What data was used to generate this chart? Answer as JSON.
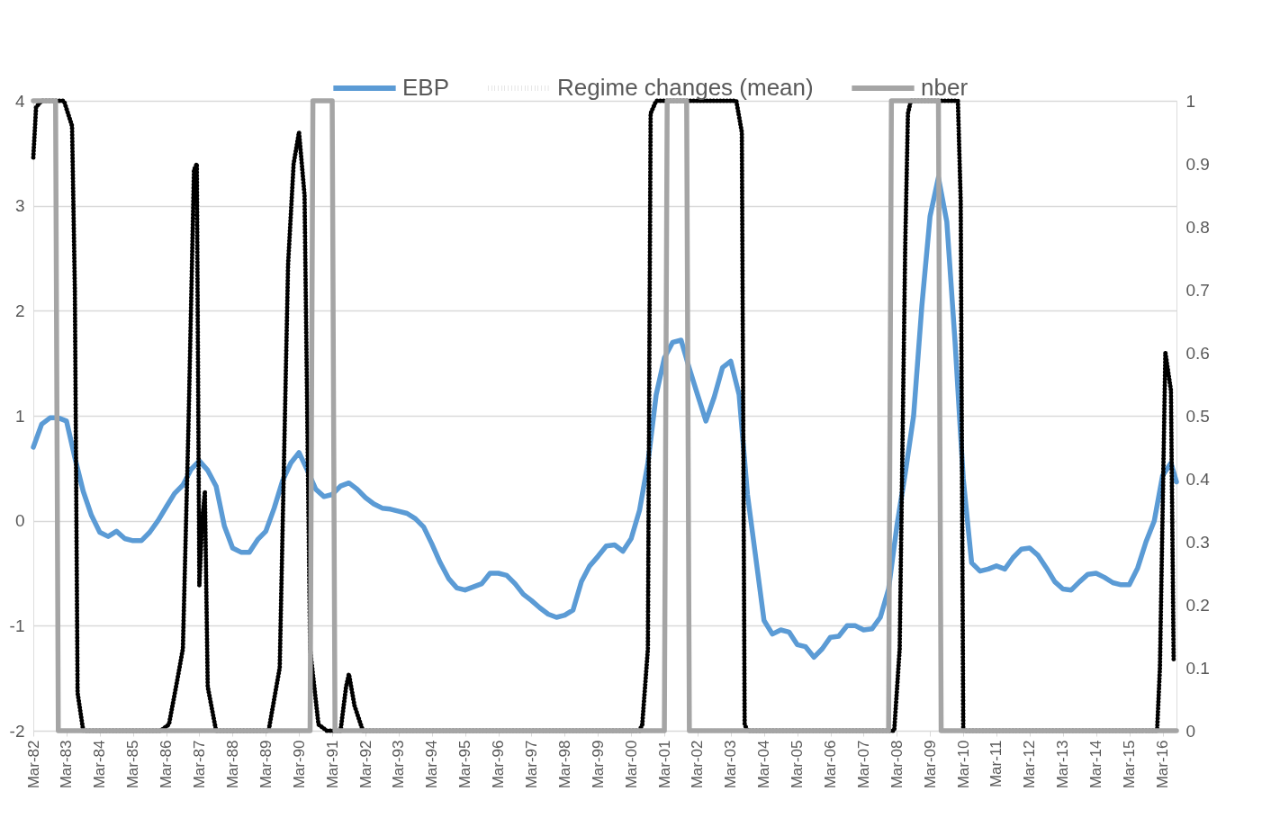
{
  "chart_data": {
    "type": "line",
    "legend": "top",
    "grid": "y",
    "marker": "none",
    "xlim": [
      "1982-03",
      "2016-08"
    ],
    "xticks": [
      {
        "value": "1982-03",
        "label": "Mar-82"
      },
      {
        "value": "1983-03",
        "label": "Mar-83"
      },
      {
        "value": "1984-03",
        "label": "Mar-84"
      },
      {
        "value": "1985-03",
        "label": "Mar-85"
      },
      {
        "value": "1986-03",
        "label": "Mar-86"
      },
      {
        "value": "1987-03",
        "label": "Mar-87"
      },
      {
        "value": "1988-03",
        "label": "Mar-88"
      },
      {
        "value": "1989-03",
        "label": "Mar-89"
      },
      {
        "value": "1990-03",
        "label": "Mar-90"
      },
      {
        "value": "1991-03",
        "label": "Mar-91"
      },
      {
        "value": "1992-03",
        "label": "Mar-92"
      },
      {
        "value": "1993-03",
        "label": "Mar-93"
      },
      {
        "value": "1994-03",
        "label": "Mar-94"
      },
      {
        "value": "1995-03",
        "label": "Mar-95"
      },
      {
        "value": "1996-03",
        "label": "Mar-96"
      },
      {
        "value": "1997-03",
        "label": "Mar-97"
      },
      {
        "value": "1998-03",
        "label": "Mar-98"
      },
      {
        "value": "1999-03",
        "label": "Mar-99"
      },
      {
        "value": "2000-03",
        "label": "Mar-00"
      },
      {
        "value": "2001-03",
        "label": "Mar-01"
      },
      {
        "value": "2002-03",
        "label": "Mar-02"
      },
      {
        "value": "2003-03",
        "label": "Mar-03"
      },
      {
        "value": "2004-03",
        "label": "Mar-04"
      },
      {
        "value": "2005-03",
        "label": "Mar-05"
      },
      {
        "value": "2006-03",
        "label": "Mar-06"
      },
      {
        "value": "2007-03",
        "label": "Mar-07"
      },
      {
        "value": "2008-03",
        "label": "Mar-08"
      },
      {
        "value": "2009-03",
        "label": "Mar-09"
      },
      {
        "value": "2010-03",
        "label": "Mar-10"
      },
      {
        "value": "2011-03",
        "label": "Mar-11"
      },
      {
        "value": "2012-03",
        "label": "Mar-12"
      },
      {
        "value": "2013-03",
        "label": "Mar-13"
      },
      {
        "value": "2014-03",
        "label": "Mar-14"
      },
      {
        "value": "2015-03",
        "label": "Mar-15"
      },
      {
        "value": "2016-03",
        "label": "Mar-16"
      }
    ],
    "ylim": [
      -2,
      4
    ],
    "yticks": [
      -2,
      -1,
      0,
      1,
      2,
      3,
      4
    ],
    "y2lim": [
      0,
      1
    ],
    "y2ticks": [
      0,
      0.1,
      0.2,
      0.3,
      0.4,
      0.5,
      0.6,
      0.7,
      0.8,
      0.9,
      1
    ],
    "series": [
      {
        "name": "EBP",
        "color": "#5b9bd5",
        "line_style": "solid",
        "x": [
          "1982-03",
          "1982-06",
          "1982-09",
          "1982-12",
          "1983-03",
          "1983-06",
          "1983-09",
          "1983-12",
          "1984-03",
          "1984-06",
          "1984-09",
          "1984-12",
          "1985-03",
          "1985-06",
          "1985-09",
          "1985-12",
          "1986-03",
          "1986-06",
          "1986-09",
          "1986-12",
          "1987-03",
          "1987-06",
          "1987-09",
          "1987-12",
          "1988-03",
          "1988-06",
          "1988-09",
          "1988-12",
          "1989-03",
          "1989-06",
          "1989-09",
          "1989-12",
          "1990-03",
          "1990-06",
          "1990-09",
          "1990-12",
          "1991-03",
          "1991-06",
          "1991-09",
          "1991-12",
          "1992-03",
          "1992-06",
          "1992-09",
          "1992-12",
          "1993-03",
          "1993-06",
          "1993-09",
          "1993-12",
          "1994-03",
          "1994-06",
          "1994-09",
          "1994-12",
          "1995-03",
          "1995-06",
          "1995-09",
          "1995-12",
          "1996-03",
          "1996-06",
          "1996-09",
          "1996-12",
          "1997-03",
          "1997-06",
          "1997-09",
          "1997-12",
          "1998-03",
          "1998-06",
          "1998-09",
          "1998-12",
          "1999-03",
          "1999-06",
          "1999-09",
          "1999-12",
          "2000-03",
          "2000-06",
          "2000-09",
          "2000-12",
          "2001-03",
          "2001-06",
          "2001-09",
          "2001-12",
          "2002-03",
          "2002-06",
          "2002-09",
          "2002-12",
          "2003-03",
          "2003-06",
          "2003-09",
          "2003-12",
          "2004-03",
          "2004-06",
          "2004-09",
          "2004-12",
          "2005-03",
          "2005-06",
          "2005-09",
          "2005-12",
          "2006-03",
          "2006-06",
          "2006-09",
          "2006-12",
          "2007-03",
          "2007-06",
          "2007-09",
          "2007-12",
          "2008-03",
          "2008-06",
          "2008-09",
          "2008-12",
          "2009-03",
          "2009-06",
          "2009-09",
          "2009-12",
          "2010-03",
          "2010-06",
          "2010-09",
          "2010-12",
          "2011-03",
          "2011-06",
          "2011-09",
          "2011-12",
          "2012-03",
          "2012-06",
          "2012-09",
          "2012-12",
          "2013-03",
          "2013-06",
          "2013-09",
          "2013-12",
          "2014-03",
          "2014-06",
          "2014-09",
          "2014-12",
          "2015-03",
          "2015-06",
          "2015-09",
          "2015-12",
          "2016-03",
          "2016-06",
          "2016-08"
        ],
        "values": [
          0.7,
          0.92,
          0.98,
          0.98,
          0.95,
          0.6,
          0.28,
          0.05,
          -0.11,
          -0.15,
          -0.1,
          -0.17,
          -0.19,
          -0.19,
          -0.11,
          0.0,
          0.13,
          0.26,
          0.34,
          0.49,
          0.57,
          0.48,
          0.33,
          -0.05,
          -0.26,
          -0.3,
          -0.3,
          -0.18,
          -0.1,
          0.12,
          0.38,
          0.55,
          0.65,
          0.48,
          0.3,
          0.23,
          0.25,
          0.33,
          0.36,
          0.3,
          0.22,
          0.16,
          0.12,
          0.11,
          0.09,
          0.07,
          0.02,
          -0.06,
          -0.22,
          -0.4,
          -0.55,
          -0.64,
          -0.66,
          -0.63,
          -0.6,
          -0.5,
          -0.5,
          -0.52,
          -0.6,
          -0.7,
          -0.76,
          -0.83,
          -0.89,
          -0.92,
          -0.9,
          -0.85,
          -0.58,
          -0.43,
          -0.34,
          -0.24,
          -0.23,
          -0.29,
          -0.17,
          0.1,
          0.55,
          1.2,
          1.55,
          1.7,
          1.72,
          1.45,
          1.2,
          0.95,
          1.18,
          1.46,
          1.52,
          1.2,
          0.25,
          -0.35,
          -0.95,
          -1.08,
          -1.04,
          -1.06,
          -1.18,
          -1.2,
          -1.3,
          -1.22,
          -1.11,
          -1.1,
          -1.0,
          -1.0,
          -1.04,
          -1.03,
          -0.92,
          -0.65,
          -0.05,
          0.45,
          1.0,
          2.05,
          2.9,
          3.27,
          2.85,
          1.7,
          0.4,
          -0.4,
          -0.48,
          -0.46,
          -0.43,
          -0.46,
          -0.35,
          -0.27,
          -0.26,
          -0.33,
          -0.45,
          -0.58,
          -0.65,
          -0.66,
          -0.58,
          -0.51,
          -0.5,
          -0.54,
          -0.59,
          -0.61,
          -0.61,
          -0.45,
          -0.2,
          0.0,
          0.43,
          0.55,
          0.37
        ]
      },
      {
        "name": "Regime changes (mean)",
        "axis": "y2",
        "color": "#000000",
        "line_style": "dotted",
        "x": [
          "1982-03",
          "1982-04",
          "1982-06",
          "1983-02",
          "1983-05",
          "1983-06",
          "1983-07",
          "1983-09",
          "1986-01",
          "1986-04",
          "1986-07",
          "1986-09",
          "1986-11",
          "1987-01",
          "1987-02",
          "1987-03",
          "1987-04",
          "1987-05",
          "1987-06",
          "1987-09",
          "1989-04",
          "1989-08",
          "1989-11",
          "1990-01",
          "1990-03",
          "1990-05",
          "1990-07",
          "1990-10",
          "1991-01",
          "1991-06",
          "1991-08",
          "1991-09",
          "1991-11",
          "1992-02",
          "2000-06",
          "2000-07",
          "2000-09",
          "2000-10",
          "2000-12",
          "2003-05",
          "2003-07",
          "2003-08",
          "2003-09",
          "2008-02",
          "2008-04",
          "2008-06",
          "2008-07",
          "2008-08",
          "2010-01",
          "2010-02",
          "2010-03",
          "2016-01",
          "2016-02",
          "2016-04",
          "2016-06",
          "2016-07"
        ],
        "values": [
          0.91,
          0.99,
          1.0,
          1.0,
          0.96,
          0.7,
          0.06,
          0.0,
          0.0,
          0.01,
          0.08,
          0.13,
          0.48,
          0.89,
          0.9,
          0.23,
          0.33,
          0.38,
          0.07,
          0.0,
          0.0,
          0.1,
          0.74,
          0.9,
          0.95,
          0.85,
          0.13,
          0.01,
          0.0,
          0.0,
          0.07,
          0.09,
          0.04,
          0.0,
          0.0,
          0.01,
          0.13,
          0.98,
          1.0,
          1.0,
          0.95,
          0.01,
          0.0,
          0.0,
          0.13,
          0.77,
          0.98,
          1.0,
          1.0,
          0.84,
          0.0,
          0.0,
          0.1,
          0.6,
          0.54,
          0.11
        ]
      },
      {
        "name": "nber",
        "axis": "y2",
        "color": "#a5a5a5",
        "line_style": "solid",
        "x": [
          "1982-03",
          "1982-11",
          "1982-12",
          "1990-07",
          "1990-08",
          "1991-03",
          "1991-04",
          "2001-03",
          "2001-04",
          "2001-11",
          "2001-12",
          "2007-12",
          "2008-01",
          "2009-06",
          "2009-07",
          "2016-08"
        ],
        "values": [
          1,
          1,
          0,
          0,
          1,
          1,
          0,
          0,
          1,
          1,
          0,
          0,
          1,
          1,
          0,
          0
        ]
      }
    ]
  }
}
